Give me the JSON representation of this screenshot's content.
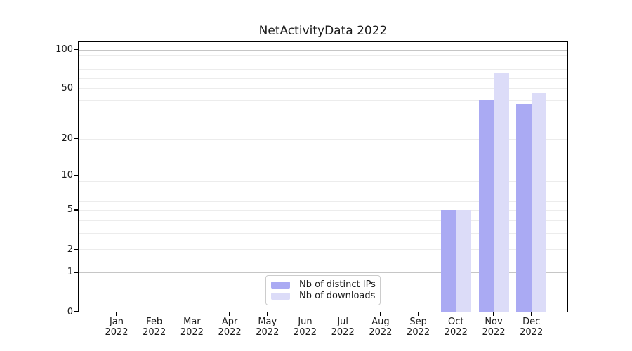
{
  "title": "NetActivityData 2022",
  "colors": {
    "series_distinct_ips": "#aaaaf3",
    "series_downloads": "#dcdcf8",
    "grid_major": "#c6c6c6",
    "grid_minor": "#ececec",
    "axis_line": "#000000",
    "text": "#1a1a1a",
    "legend_border": "#cccccc",
    "background": "#ffffff"
  },
  "y_axis": {
    "tick_labels": [
      "0",
      "1",
      "2",
      "5",
      "10",
      "20",
      "50",
      "100"
    ]
  },
  "x_axis": {
    "year_line": "2022",
    "month_lines": [
      "Jan",
      "Feb",
      "Mar",
      "Apr",
      "May",
      "Jun",
      "Jul",
      "Aug",
      "Sep",
      "Oct",
      "Nov",
      "Dec"
    ]
  },
  "legend": {
    "items": [
      {
        "label": "Nb of distinct IPs",
        "color": "#aaaaf3"
      },
      {
        "label": "Nb of downloads",
        "color": "#dcdcf8"
      }
    ]
  },
  "chart_data": {
    "type": "bar",
    "title": "NetActivityData 2022",
    "categories": [
      "Jan 2022",
      "Feb 2022",
      "Mar 2022",
      "Apr 2022",
      "May 2022",
      "Jun 2022",
      "Jul 2022",
      "Aug 2022",
      "Sep 2022",
      "Oct 2022",
      "Nov 2022",
      "Dec 2022"
    ],
    "series": [
      {
        "name": "Nb of distinct IPs",
        "color": "#aaaaf3",
        "values": [
          0,
          0,
          0,
          0,
          0,
          0,
          0,
          0,
          0,
          5,
          40,
          38
        ]
      },
      {
        "name": "Nb of downloads",
        "color": "#dcdcf8",
        "values": [
          0,
          0,
          0,
          0,
          0,
          0,
          0,
          0,
          0,
          5,
          66,
          46
        ]
      }
    ],
    "xlabel": "",
    "ylabel": "",
    "yscale": "symlog (position proportional to log1p(value))",
    "ylim": [
      0,
      114
    ],
    "y_ticks": [
      0,
      1,
      2,
      5,
      10,
      20,
      50,
      100
    ],
    "grid": {
      "horizontal": true,
      "major_at": [
        1,
        10,
        100
      ],
      "minor_at": [
        2,
        3,
        4,
        5,
        6,
        7,
        8,
        9,
        20,
        30,
        40,
        50,
        60,
        70,
        80,
        90
      ]
    },
    "legend_position": "lower center inside plot"
  }
}
